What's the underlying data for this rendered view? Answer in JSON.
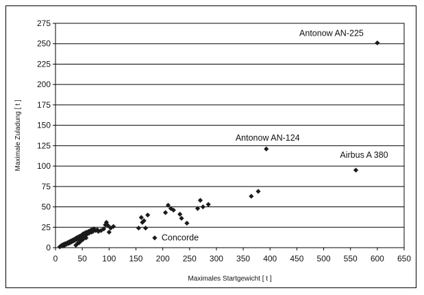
{
  "chart_data": {
    "type": "scatter",
    "title": "",
    "xlabel": "Maximales Startgewicht [ t ]",
    "ylabel": "Maximale Zuladung [ t ]",
    "xlim": [
      0,
      650
    ],
    "ylim": [
      0,
      275
    ],
    "xticks": [
      0,
      50,
      100,
      150,
      200,
      250,
      300,
      350,
      400,
      450,
      500,
      550,
      600,
      650
    ],
    "yticks": [
      0,
      25,
      50,
      75,
      100,
      125,
      150,
      175,
      200,
      225,
      250,
      275
    ],
    "grid": "horizontal",
    "marker": "diamond",
    "marker_color": "#1a1a1a",
    "points": [
      [
        8,
        1
      ],
      [
        10,
        2
      ],
      [
        12,
        3
      ],
      [
        14,
        2
      ],
      [
        15,
        4
      ],
      [
        17,
        3
      ],
      [
        18,
        5
      ],
      [
        20,
        4
      ],
      [
        22,
        6
      ],
      [
        24,
        5
      ],
      [
        25,
        7
      ],
      [
        27,
        6
      ],
      [
        28,
        8
      ],
      [
        30,
        7
      ],
      [
        31,
        9
      ],
      [
        33,
        8
      ],
      [
        34,
        10
      ],
      [
        36,
        9
      ],
      [
        37,
        11
      ],
      [
        38,
        3
      ],
      [
        39,
        12
      ],
      [
        40,
        10
      ],
      [
        41,
        5
      ],
      [
        42,
        13
      ],
      [
        43,
        11
      ],
      [
        44,
        6
      ],
      [
        45,
        14
      ],
      [
        46,
        12
      ],
      [
        47,
        8
      ],
      [
        48,
        15
      ],
      [
        49,
        13
      ],
      [
        50,
        16
      ],
      [
        51,
        10
      ],
      [
        52,
        17
      ],
      [
        53,
        14
      ],
      [
        55,
        18
      ],
      [
        56,
        15
      ],
      [
        57,
        12
      ],
      [
        58,
        19
      ],
      [
        60,
        17
      ],
      [
        62,
        20
      ],
      [
        63,
        18
      ],
      [
        65,
        21
      ],
      [
        67,
        19
      ],
      [
        68,
        22
      ],
      [
        70,
        20
      ],
      [
        72,
        23
      ],
      [
        75,
        21
      ],
      [
        78,
        22
      ],
      [
        80,
        20
      ],
      [
        85,
        21
      ],
      [
        90,
        23
      ],
      [
        93,
        28
      ],
      [
        95,
        31
      ],
      [
        98,
        27
      ],
      [
        100,
        19
      ],
      [
        103,
        24
      ],
      [
        108,
        26
      ],
      [
        155,
        24
      ],
      [
        160,
        37
      ],
      [
        162,
        31
      ],
      [
        165,
        33
      ],
      [
        168,
        24
      ],
      [
        172,
        40
      ],
      [
        185,
        12
      ],
      [
        205,
        43
      ],
      [
        210,
        52
      ],
      [
        215,
        48
      ],
      [
        220,
        46
      ],
      [
        232,
        41
      ],
      [
        235,
        36
      ],
      [
        245,
        30
      ],
      [
        265,
        48
      ],
      [
        270,
        58
      ],
      [
        275,
        50
      ],
      [
        285,
        53
      ],
      [
        365,
        63
      ],
      [
        378,
        69
      ],
      [
        393,
        121
      ],
      [
        560,
        95
      ],
      [
        600,
        251
      ]
    ],
    "annotations": [
      {
        "text": "Antonow AN-225",
        "x": 600,
        "y": 251
      },
      {
        "text": "Antonow AN-124",
        "x": 393,
        "y": 121
      },
      {
        "text": "Airbus A 380",
        "x": 560,
        "y": 95
      },
      {
        "text": "Concorde",
        "x": 185,
        "y": 12
      }
    ]
  }
}
